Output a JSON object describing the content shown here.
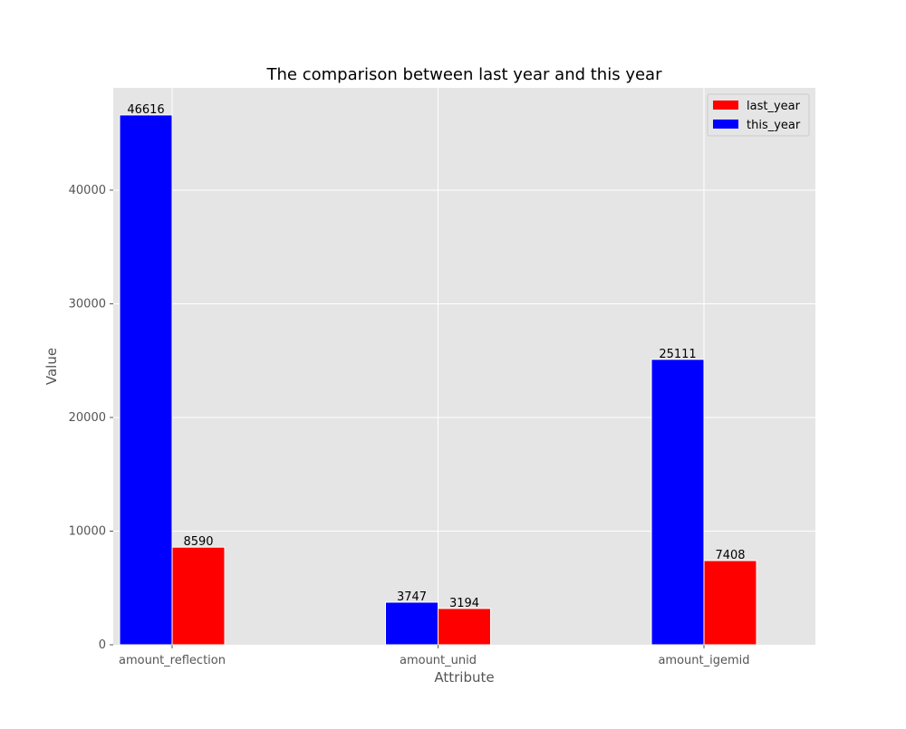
{
  "chart_data": {
    "type": "bar",
    "title": "The comparison between last year and this year",
    "xlabel": "Attribute",
    "ylabel": "Value",
    "categories": [
      "amount_reflection",
      "amount_unid",
      "amount_igemid"
    ],
    "series": [
      {
        "name": "this_year",
        "color": "#0000ff",
        "values": [
          46616,
          3747,
          25111
        ]
      },
      {
        "name": "last_year",
        "color": "#ff0000",
        "values": [
          8590,
          3194,
          7408
        ]
      }
    ],
    "legend_order": [
      "last_year",
      "this_year"
    ],
    "ylim": [
      0,
      49000
    ],
    "yticks": [
      0,
      10000,
      20000,
      30000,
      40000
    ],
    "grid": true,
    "legend_position": "top-right",
    "background": "#e5e5e5"
  }
}
